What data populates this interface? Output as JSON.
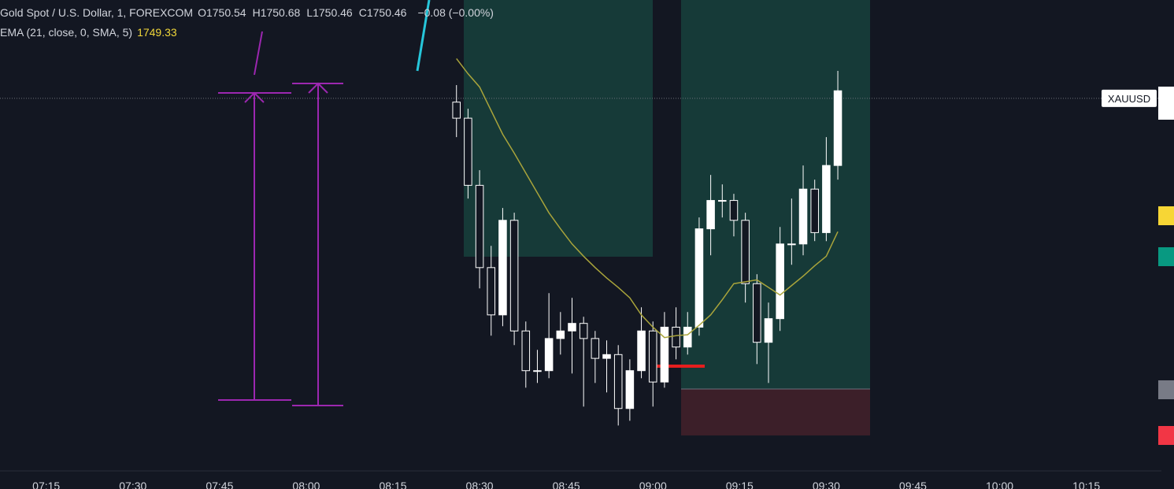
{
  "chart_data": {
    "type": "candlestick",
    "title": "Gold Spot / U.S. Dollar, 1, FOREXCOM",
    "ohlc_legend": [
      {
        "label": "O",
        "value": "1750.54"
      },
      {
        "label": "H",
        "value": "1750.68"
      },
      {
        "label": "L",
        "value": "1750.46"
      },
      {
        "label": "C",
        "value": "1750.46"
      }
    ],
    "change": "−0.08 (−0.00%)",
    "indicator": {
      "name": "EMA (21, close, 0, SMA, 5)",
      "value": "1749.33"
    },
    "symbol_label": "XAUUSD",
    "last_price": 1750.46,
    "up_color": "#ffffff",
    "down_color": "#131722",
    "xlim": [
      "07:07",
      "10:28"
    ],
    "xticks": [
      "07:15",
      "07:30",
      "07:45",
      "08:00",
      "08:15",
      "08:30",
      "08:45",
      "09:00",
      "09:15",
      "09:30",
      "09:45",
      "10:00",
      "10:15"
    ],
    "ylim": [
      1746.52,
      1751.5
    ],
    "x": [
      "08:26",
      "08:28",
      "08:30",
      "08:32",
      "08:34",
      "08:36",
      "08:38",
      "08:40",
      "08:42",
      "08:44",
      "08:46",
      "08:48",
      "08:50",
      "08:52",
      "08:54",
      "08:56",
      "08:58",
      "09:00",
      "09:02",
      "09:04",
      "09:06",
      "09:08",
      "09:10",
      "09:12",
      "09:14",
      "09:16",
      "09:18",
      "09:20",
      "09:22",
      "09:24",
      "09:26",
      "09:28",
      "09:30",
      "09:32"
    ],
    "open": [
      1750.42,
      1750.25,
      1749.54,
      1748.67,
      1748.17,
      1749.17,
      1748.0,
      1747.58,
      1747.58,
      1747.92,
      1748.0,
      1748.08,
      1747.92,
      1747.71,
      1747.75,
      1747.18,
      1747.58,
      1748.0,
      1747.46,
      1748.04,
      1747.83,
      1748.04,
      1749.08,
      1749.38,
      1749.38,
      1749.17,
      1748.5,
      1747.88,
      1748.13,
      1748.92,
      1748.92,
      1749.5,
      1749.04,
      1749.75
    ],
    "high": [
      1750.6,
      1750.35,
      1749.7,
      1748.9,
      1749.3,
      1749.25,
      1748.1,
      1747.8,
      1748.4,
      1748.2,
      1748.35,
      1748.15,
      1748.0,
      1747.9,
      1747.85,
      1747.7,
      1748.25,
      1748.1,
      1748.2,
      1748.25,
      1748.2,
      1749.2,
      1749.65,
      1749.55,
      1749.45,
      1749.25,
      1748.6,
      1748.3,
      1749.1,
      1749.4,
      1749.75,
      1749.6,
      1750.05,
      1750.75
    ],
    "low": [
      1750.05,
      1749.4,
      1748.45,
      1747.95,
      1748.05,
      1747.85,
      1747.4,
      1747.45,
      1747.5,
      1747.75,
      1747.55,
      1747.2,
      1747.45,
      1747.35,
      1747.0,
      1747.05,
      1747.5,
      1747.2,
      1747.4,
      1747.7,
      1747.75,
      1747.95,
      1748.8,
      1749.2,
      1749.0,
      1748.3,
      1747.65,
      1747.45,
      1748.0,
      1748.7,
      1748.8,
      1748.95,
      1748.95,
      1749.6
    ],
    "close": [
      1750.25,
      1749.54,
      1748.67,
      1748.17,
      1749.17,
      1748.0,
      1747.58,
      1747.58,
      1747.92,
      1748.0,
      1748.08,
      1747.92,
      1747.71,
      1747.75,
      1747.18,
      1747.58,
      1748.0,
      1747.46,
      1748.04,
      1747.83,
      1748.04,
      1749.08,
      1749.38,
      1749.38,
      1749.17,
      1748.5,
      1747.88,
      1748.13,
      1748.92,
      1748.92,
      1749.5,
      1749.04,
      1749.75,
      1750.54
    ],
    "series": [
      {
        "name": "EMA (21, close, 0, SMA, 5)",
        "color": "#a9a43b",
        "values": [
          1750.88,
          1750.72,
          1750.58,
          1750.33,
          1750.08,
          1749.88,
          1749.67,
          1749.46,
          1749.25,
          1749.08,
          1748.92,
          1748.79,
          1748.67,
          1748.56,
          1748.46,
          1748.35,
          1748.17,
          1748.04,
          1747.93,
          1747.95,
          1747.96,
          1748.06,
          1748.17,
          1748.33,
          1748.5,
          1748.52,
          1748.54,
          1748.46,
          1748.38,
          1748.48,
          1748.58,
          1748.69,
          1748.79,
          1749.05
        ]
      }
    ]
  }
}
